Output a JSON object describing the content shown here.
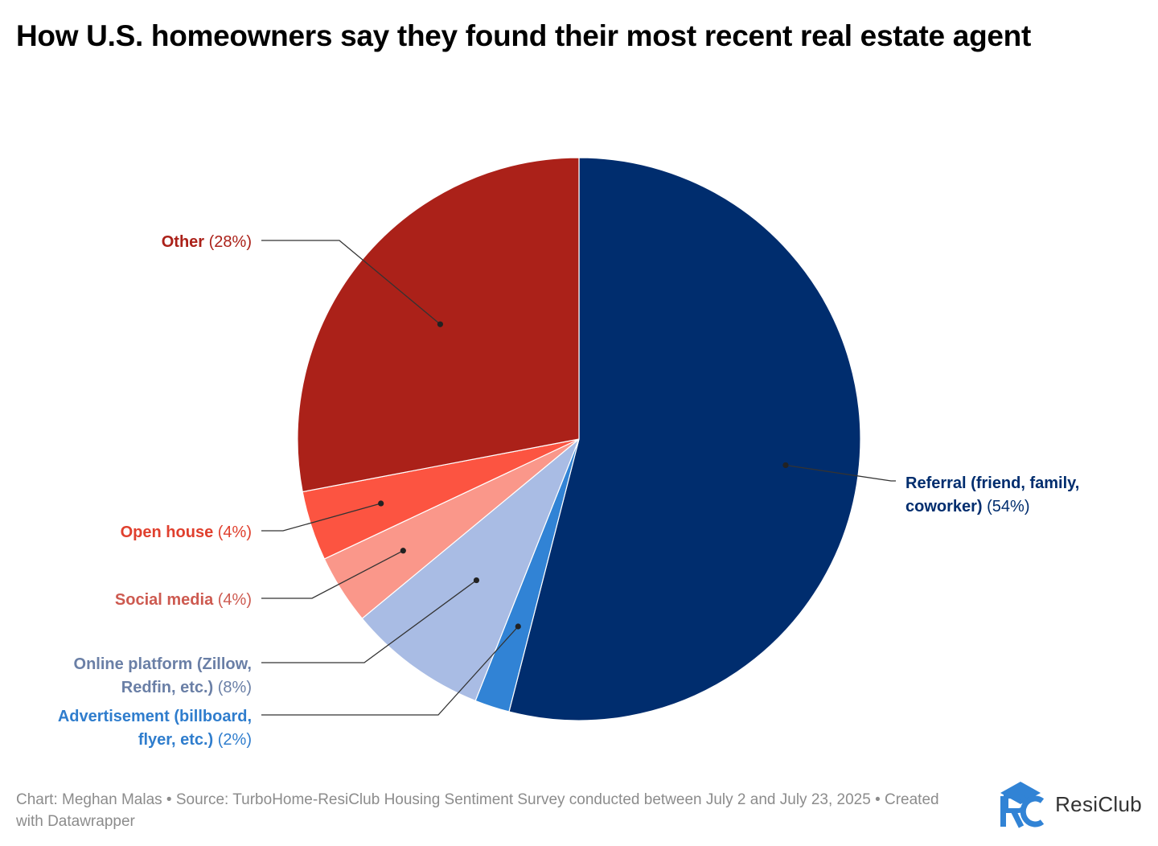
{
  "title": "How U.S. homeowners say they found their most recent real estate agent",
  "chart_data": {
    "type": "pie",
    "title": "How U.S. homeowners say they found their most recent real estate agent",
    "slices": [
      {
        "label": "Referral (friend, family, coworker)",
        "value": 54,
        "value_label": "(54%)",
        "color": "#002d6e",
        "label_color": "#002d6e"
      },
      {
        "label": "Advertisement (billboard, flyer, etc.)",
        "value": 2,
        "value_label": "(2%)",
        "color": "#3183d5",
        "label_color": "#2f7dcd"
      },
      {
        "label": "Online platform (Zillow, Redfin, etc.)",
        "value": 8,
        "value_label": "(8%)",
        "color": "#a9bce4",
        "label_color": "#6a7fa6"
      },
      {
        "label": "Social media",
        "value": 4,
        "value_label": "(4%)",
        "color": "#fa978a",
        "label_color": "#cd5a50"
      },
      {
        "label": "Open house",
        "value": 4,
        "value_label": "(4%)",
        "color": "#fc5441",
        "label_color": "#e0402e"
      },
      {
        "label": "Other",
        "value": 28,
        "value_label": "(28%)",
        "color": "#ab2119",
        "label_color": "#ab2119"
      }
    ]
  },
  "footer": "Chart: Meghan Malas • Source: TurboHome-ResiClub Housing Sentiment Survey conducted between July 2 and July 23, 2025 • Created with Datawrapper",
  "logo": {
    "text": "ResiClub",
    "mark_icon": "resiclub-rc-logo-icon",
    "mark_color": "#3183d5"
  }
}
